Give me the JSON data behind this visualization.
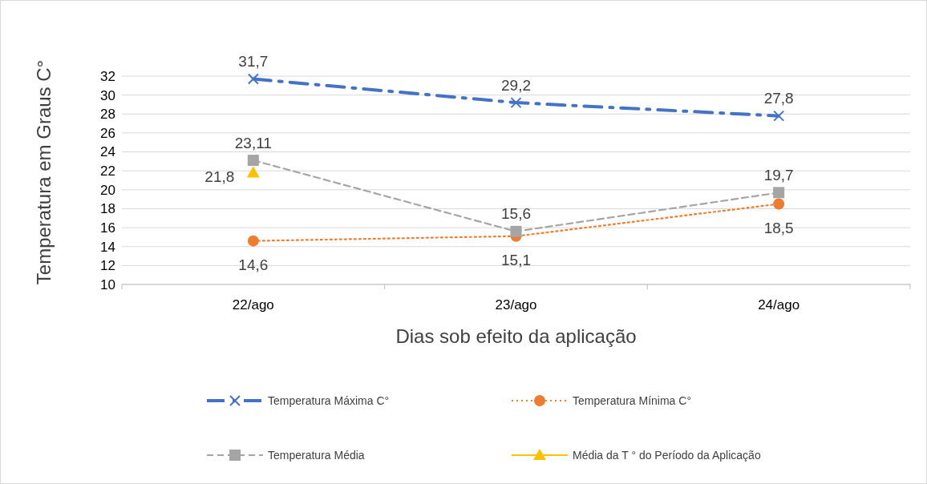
{
  "chart_data": {
    "type": "line",
    "xlabel": "Dias sob efeito da aplicação",
    "ylabel": "Temperatura em Graus C°",
    "categories": [
      "22/ago",
      "23/ago",
      "24/ago"
    ],
    "ylim": [
      10,
      32
    ],
    "yticks": [
      10,
      12,
      14,
      16,
      18,
      20,
      22,
      24,
      26,
      28,
      30,
      32
    ],
    "grid": "y",
    "legend": "bottom",
    "series": [
      {
        "name": "Temperatura Máxima  C°",
        "color": "#4472c4",
        "values": [
          31.7,
          29.2,
          27.8
        ],
        "value_labels": [
          "31,7",
          "29,2",
          "27,8"
        ],
        "marker": "cross",
        "line_style": "dashed"
      },
      {
        "name": "Temperatura Mínima  C°",
        "color": "#ed7d31",
        "values": [
          14.6,
          15.1,
          18.5
        ],
        "value_labels": [
          "14,6",
          "15,1",
          "18,5"
        ],
        "marker": "circle",
        "line_style": "dotted"
      },
      {
        "name": "Temperatura Média",
        "color": "#a5a5a5",
        "values": [
          23.11,
          15.6,
          19.7
        ],
        "value_labels": [
          "23,11",
          "15,6",
          "19,7"
        ],
        "marker": "square",
        "line_style": "dashed"
      },
      {
        "name": "Média da T ° do Período da Aplicação",
        "color": "#ffc000",
        "values": [
          21.8,
          null,
          null
        ],
        "value_labels": [
          "21,8",
          null,
          null
        ],
        "marker": "triangle",
        "line_style": "solid"
      }
    ]
  }
}
